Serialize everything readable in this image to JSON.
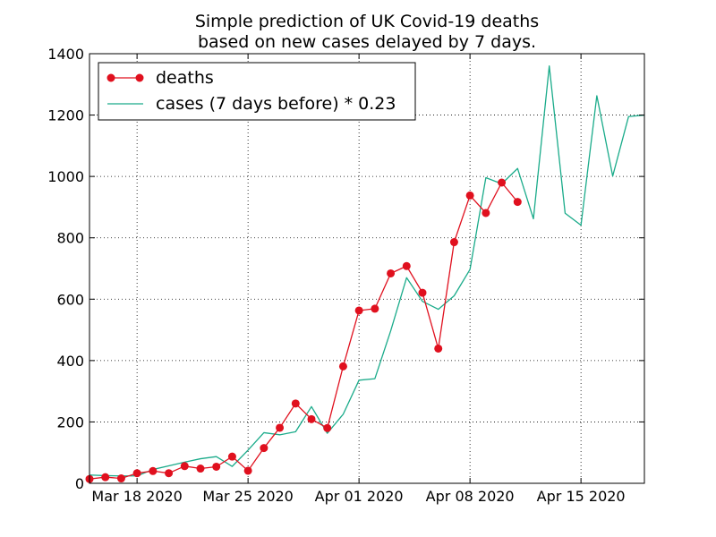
{
  "chart_data": {
    "type": "line",
    "title": "Simple prediction of UK Covid-19 deaths",
    "subtitle": "based on new cases delayed by 7 days.",
    "xlabel": "",
    "ylabel": "",
    "xlim": [
      "2020-03-15",
      "2020-04-19"
    ],
    "ylim": [
      0,
      1400
    ],
    "grid": true,
    "legend_position": "top-left",
    "x_ticks": [
      "2020-03-18",
      "2020-03-25",
      "2020-04-01",
      "2020-04-08",
      "2020-04-15"
    ],
    "x_tick_labels": [
      "Mar 18 2020",
      "Mar 25 2020",
      "Apr 01 2020",
      "Apr 08 2020",
      "Apr 15 2020"
    ],
    "y_ticks": [
      0,
      200,
      400,
      600,
      800,
      1000,
      1200,
      1400
    ],
    "series": [
      {
        "name": "deaths",
        "color": "#e0101e",
        "marker": "circle",
        "points": [
          [
            "2020-03-15",
            14
          ],
          [
            "2020-03-16",
            20
          ],
          [
            "2020-03-17",
            16
          ],
          [
            "2020-03-18",
            33
          ],
          [
            "2020-03-19",
            40
          ],
          [
            "2020-03-20",
            33
          ],
          [
            "2020-03-21",
            56
          ],
          [
            "2020-03-22",
            48
          ],
          [
            "2020-03-23",
            54
          ],
          [
            "2020-03-24",
            87
          ],
          [
            "2020-03-25",
            41
          ],
          [
            "2020-03-26",
            115
          ],
          [
            "2020-03-27",
            181
          ],
          [
            "2020-03-28",
            260
          ],
          [
            "2020-03-29",
            209
          ],
          [
            "2020-03-30",
            180
          ],
          [
            "2020-03-31",
            381
          ],
          [
            "2020-04-01",
            563
          ],
          [
            "2020-04-02",
            569
          ],
          [
            "2020-04-03",
            684
          ],
          [
            "2020-04-04",
            708
          ],
          [
            "2020-04-05",
            621
          ],
          [
            "2020-04-06",
            439
          ],
          [
            "2020-04-07",
            786
          ],
          [
            "2020-04-08",
            938
          ],
          [
            "2020-04-09",
            881
          ],
          [
            "2020-04-10",
            980
          ],
          [
            "2020-04-11",
            917
          ]
        ]
      },
      {
        "name": "cases (7 days before) * 0.23",
        "color": "#1aab8a",
        "marker": "none",
        "points": [
          [
            "2020-03-15",
            27
          ],
          [
            "2020-03-16",
            25
          ],
          [
            "2020-03-17",
            24
          ],
          [
            "2020-03-18",
            24
          ],
          [
            "2020-03-19",
            45
          ],
          [
            "2020-03-20",
            57
          ],
          [
            "2020-03-21",
            69
          ],
          [
            "2020-03-22",
            80
          ],
          [
            "2020-03-23",
            87
          ],
          [
            "2020-03-24",
            55
          ],
          [
            "2020-03-25",
            108
          ],
          [
            "2020-03-26",
            165
          ],
          [
            "2020-03-27",
            158
          ],
          [
            "2020-03-28",
            168
          ],
          [
            "2020-03-29",
            250
          ],
          [
            "2020-03-30",
            163
          ],
          [
            "2020-03-31",
            225
          ],
          [
            "2020-04-01",
            336
          ],
          [
            "2020-04-02",
            341
          ],
          [
            "2020-04-03",
            497
          ],
          [
            "2020-04-04",
            670
          ],
          [
            "2020-04-05",
            593
          ],
          [
            "2020-04-06",
            567
          ],
          [
            "2020-04-07",
            611
          ],
          [
            "2020-04-08",
            697
          ],
          [
            "2020-04-09",
            996
          ],
          [
            "2020-04-10",
            976
          ],
          [
            "2020-04-11",
            1026
          ],
          [
            "2020-04-12",
            862
          ],
          [
            "2020-04-13",
            1360
          ],
          [
            "2020-04-14",
            880
          ],
          [
            "2020-04-15",
            841
          ],
          [
            "2020-04-16",
            1263
          ],
          [
            "2020-04-17",
            1001
          ],
          [
            "2020-04-18",
            1195
          ],
          [
            "2020-04-19",
            1200
          ]
        ]
      }
    ]
  }
}
